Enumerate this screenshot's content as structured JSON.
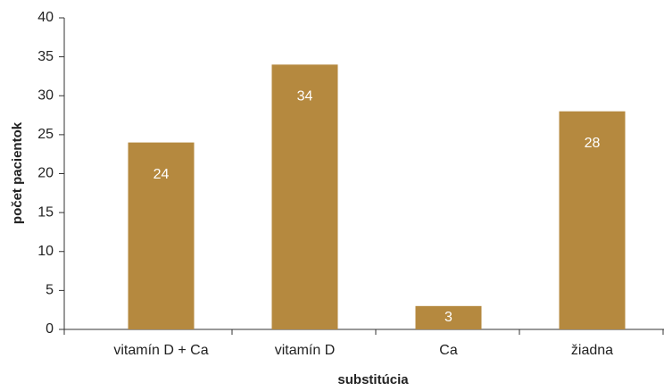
{
  "chart_data": {
    "type": "bar",
    "xlabel": "substitúcia",
    "ylabel": "počet pacientok",
    "categories": [
      "vitamín D + Ca",
      "vitamín D",
      "Ca",
      "žiadna"
    ],
    "values": [
      24,
      34,
      3,
      28
    ],
    "color": "#b5893f",
    "ylim": [
      0,
      40
    ],
    "yticks": [
      0,
      5,
      10,
      15,
      20,
      25,
      30,
      35,
      40
    ],
    "grid": false
  }
}
